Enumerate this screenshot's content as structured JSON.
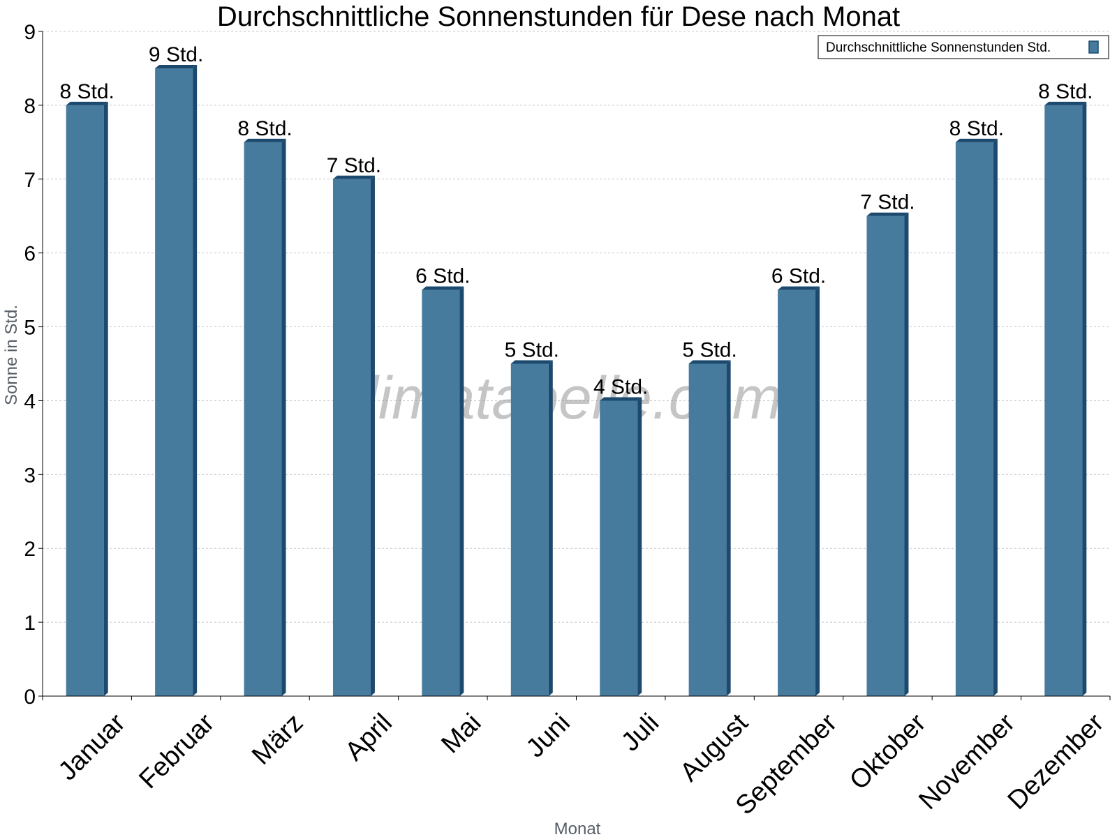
{
  "chart_data": {
    "type": "bar",
    "title": "Durchschnittliche Sonnenstunden für Dese nach Monat",
    "xlabel": "Monat",
    "ylabel": "Sonne in Std.",
    "ylim": [
      0,
      9
    ],
    "yticks": [
      0,
      1,
      2,
      3,
      4,
      5,
      6,
      7,
      8,
      9
    ],
    "grid": true,
    "legend_position": "top-right",
    "categories": [
      "Januar",
      "Februar",
      "März",
      "April",
      "Mai",
      "Juni",
      "Juli",
      "August",
      "September",
      "Oktober",
      "November",
      "Dezember"
    ],
    "series": [
      {
        "name": "Durchschnittliche Sonnenstunden Std.",
        "values": [
          8,
          8.5,
          7.5,
          7,
          5.5,
          4.5,
          4,
          4.5,
          5.5,
          6.5,
          7.5,
          8
        ],
        "labels": [
          "8 Std.",
          "9 Std.",
          "8 Std.",
          "7 Std.",
          "6 Std.",
          "5 Std.",
          "4 Std.",
          "5 Std.",
          "6 Std.",
          "7 Std.",
          "8 Std.",
          "8 Std."
        ]
      }
    ],
    "colors": {
      "bar": "#477b9e",
      "bar_side": "#1c4a6e",
      "bar_top": "#1c4a6e"
    },
    "watermark": "klimatabelle.com"
  }
}
